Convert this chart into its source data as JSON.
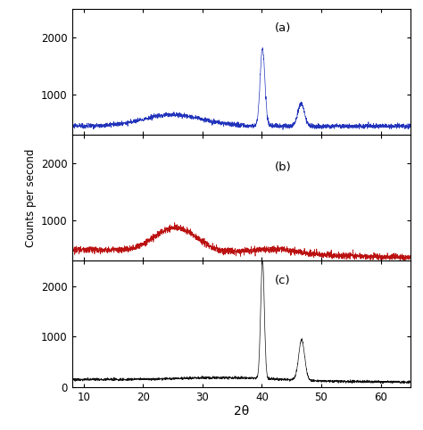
{
  "xlim": [
    8,
    65
  ],
  "ylim_ab": [
    300,
    2500
  ],
  "ylim_c": [
    0,
    2500
  ],
  "yticks_ab": [
    1000,
    2000
  ],
  "yticks_c": [
    0,
    1000,
    2000
  ],
  "xticks": [
    10,
    20,
    30,
    40,
    50,
    60
  ],
  "xlabel": "2θ",
  "ylabel": "Counts per second",
  "label_a": "(a)",
  "label_b": "(b)",
  "label_c": "(c)",
  "color_a": "#2233bb",
  "color_b": "#bb1111",
  "color_c": "#111111",
  "noise_seed_a": 10,
  "noise_seed_b": 20,
  "noise_seed_c": 30,
  "noise_amp_a": 20,
  "noise_amp_b": 28,
  "noise_amp_c": 12
}
